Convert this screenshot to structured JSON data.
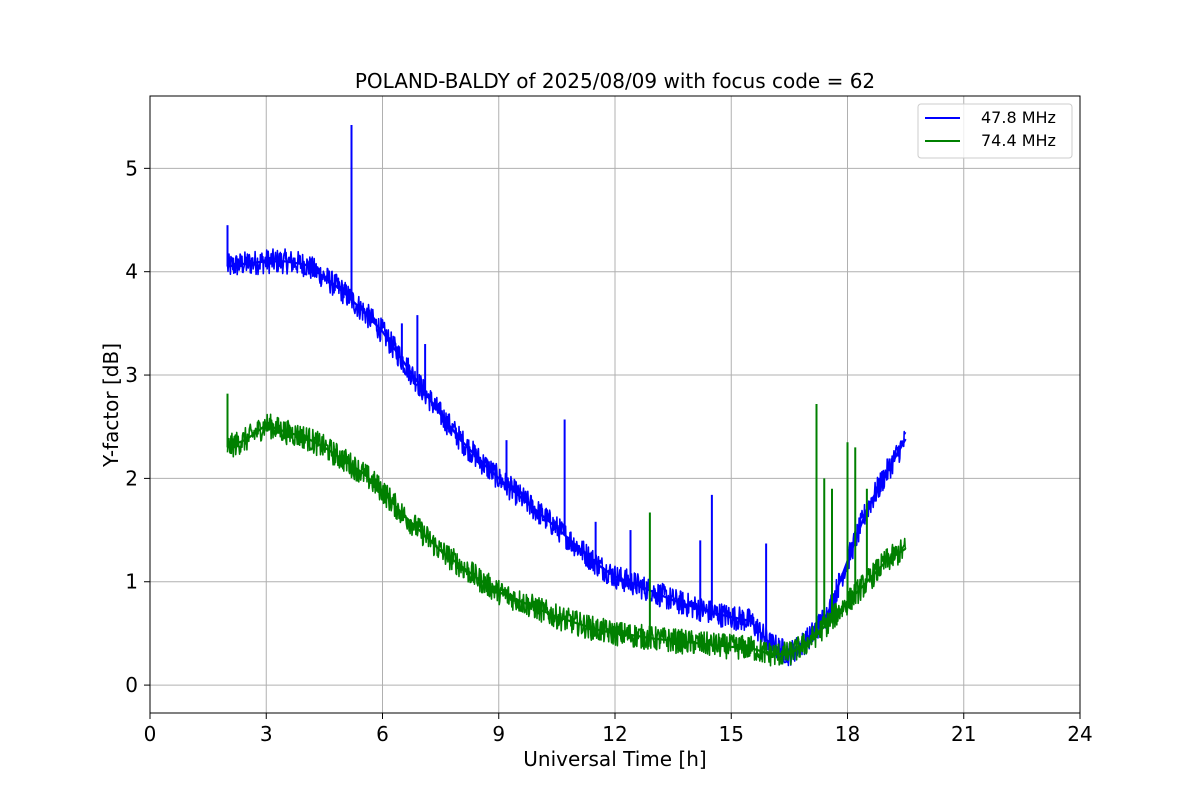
{
  "chart_data": {
    "type": "line",
    "title": "POLAND-BALDY of 2025/08/09 with focus code = 62",
    "xlabel": "Universal Time [h]",
    "ylabel": "Y-factor [dB]",
    "xlim": [
      0,
      24
    ],
    "ylim": [
      -0.27,
      5.7
    ],
    "xticks": [
      0,
      3,
      6,
      9,
      12,
      15,
      18,
      21,
      24
    ],
    "yticks": [
      0,
      1,
      2,
      3,
      4,
      5
    ],
    "grid": true,
    "legend_position": "top-right",
    "noise_amplitude_db": 0.12,
    "series": [
      {
        "name": "47.8 MHz",
        "color": "#0000ff",
        "x": [
          2.0,
          2.5,
          3.0,
          3.5,
          4.0,
          4.5,
          5.0,
          5.5,
          6.0,
          6.5,
          7.0,
          7.5,
          8.0,
          8.5,
          9.0,
          9.5,
          10.0,
          10.5,
          11.0,
          11.5,
          12.0,
          12.5,
          13.0,
          13.5,
          14.0,
          14.5,
          15.0,
          15.5,
          16.0,
          16.5,
          17.0,
          17.5,
          18.0,
          18.5,
          19.0,
          19.5
        ],
        "y": [
          4.05,
          4.08,
          4.1,
          4.1,
          4.07,
          3.95,
          3.8,
          3.62,
          3.42,
          3.15,
          2.88,
          2.62,
          2.38,
          2.18,
          2.0,
          1.84,
          1.68,
          1.52,
          1.35,
          1.18,
          1.05,
          0.98,
          0.9,
          0.82,
          0.76,
          0.7,
          0.66,
          0.62,
          0.4,
          0.3,
          0.45,
          0.7,
          1.2,
          1.7,
          2.05,
          2.38
        ],
        "spikes": [
          {
            "x": 2.0,
            "y": 4.45
          },
          {
            "x": 5.2,
            "y": 5.42
          },
          {
            "x": 6.5,
            "y": 3.5
          },
          {
            "x": 6.9,
            "y": 3.58
          },
          {
            "x": 7.1,
            "y": 3.3
          },
          {
            "x": 9.2,
            "y": 2.37
          },
          {
            "x": 10.7,
            "y": 2.57
          },
          {
            "x": 11.5,
            "y": 1.58
          },
          {
            "x": 12.4,
            "y": 1.5
          },
          {
            "x": 14.2,
            "y": 1.4
          },
          {
            "x": 14.5,
            "y": 1.84
          },
          {
            "x": 15.9,
            "y": 1.37
          }
        ]
      },
      {
        "name": "74.4 MHz",
        "color": "#008000",
        "x": [
          2.0,
          2.5,
          3.0,
          3.5,
          4.0,
          4.5,
          5.0,
          5.5,
          6.0,
          6.5,
          7.0,
          7.5,
          8.0,
          8.5,
          9.0,
          9.5,
          10.0,
          10.5,
          11.0,
          11.5,
          12.0,
          12.5,
          13.0,
          13.5,
          14.0,
          14.5,
          15.0,
          15.5,
          16.0,
          16.5,
          17.0,
          17.5,
          18.0,
          18.5,
          19.0,
          19.5
        ],
        "y": [
          2.3,
          2.38,
          2.52,
          2.45,
          2.4,
          2.3,
          2.18,
          2.05,
          1.88,
          1.66,
          1.48,
          1.3,
          1.16,
          1.02,
          0.9,
          0.82,
          0.74,
          0.66,
          0.6,
          0.54,
          0.5,
          0.48,
          0.45,
          0.43,
          0.41,
          0.39,
          0.37,
          0.36,
          0.3,
          0.3,
          0.42,
          0.6,
          0.8,
          1.0,
          1.2,
          1.32
        ],
        "spikes": [
          {
            "x": 2.0,
            "y": 2.82
          },
          {
            "x": 12.9,
            "y": 1.67
          },
          {
            "x": 17.2,
            "y": 2.72
          },
          {
            "x": 17.4,
            "y": 2.0
          },
          {
            "x": 17.6,
            "y": 1.9
          },
          {
            "x": 18.0,
            "y": 2.35
          },
          {
            "x": 18.2,
            "y": 2.3
          },
          {
            "x": 18.5,
            "y": 1.9
          }
        ]
      }
    ]
  }
}
